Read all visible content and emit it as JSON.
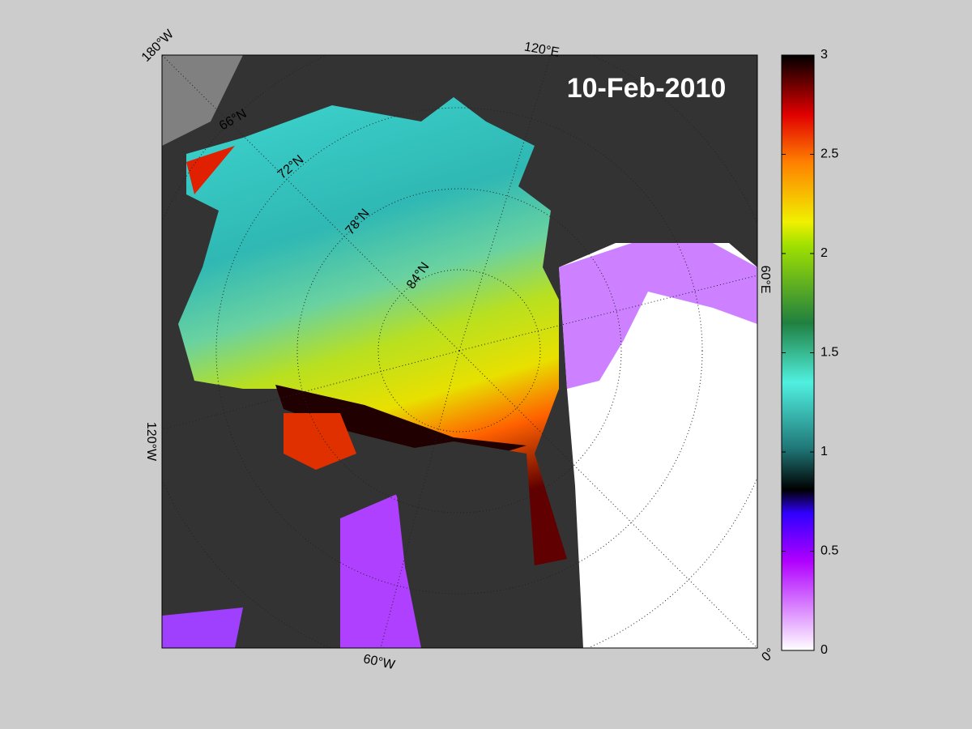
{
  "map": {
    "date_label": "10-Feb-2010",
    "longitude_labels": [
      "180°W",
      "120°E",
      "60°E",
      "0°",
      "60°W",
      "120°W"
    ],
    "latitude_labels": [
      "66°N",
      "72°N",
      "78°N",
      "84°N"
    ],
    "colorbar": {
      "lim": [
        0,
        3
      ],
      "ticks": [
        0,
        0.5,
        1,
        1.5,
        2,
        2.5,
        3
      ]
    }
  }
}
